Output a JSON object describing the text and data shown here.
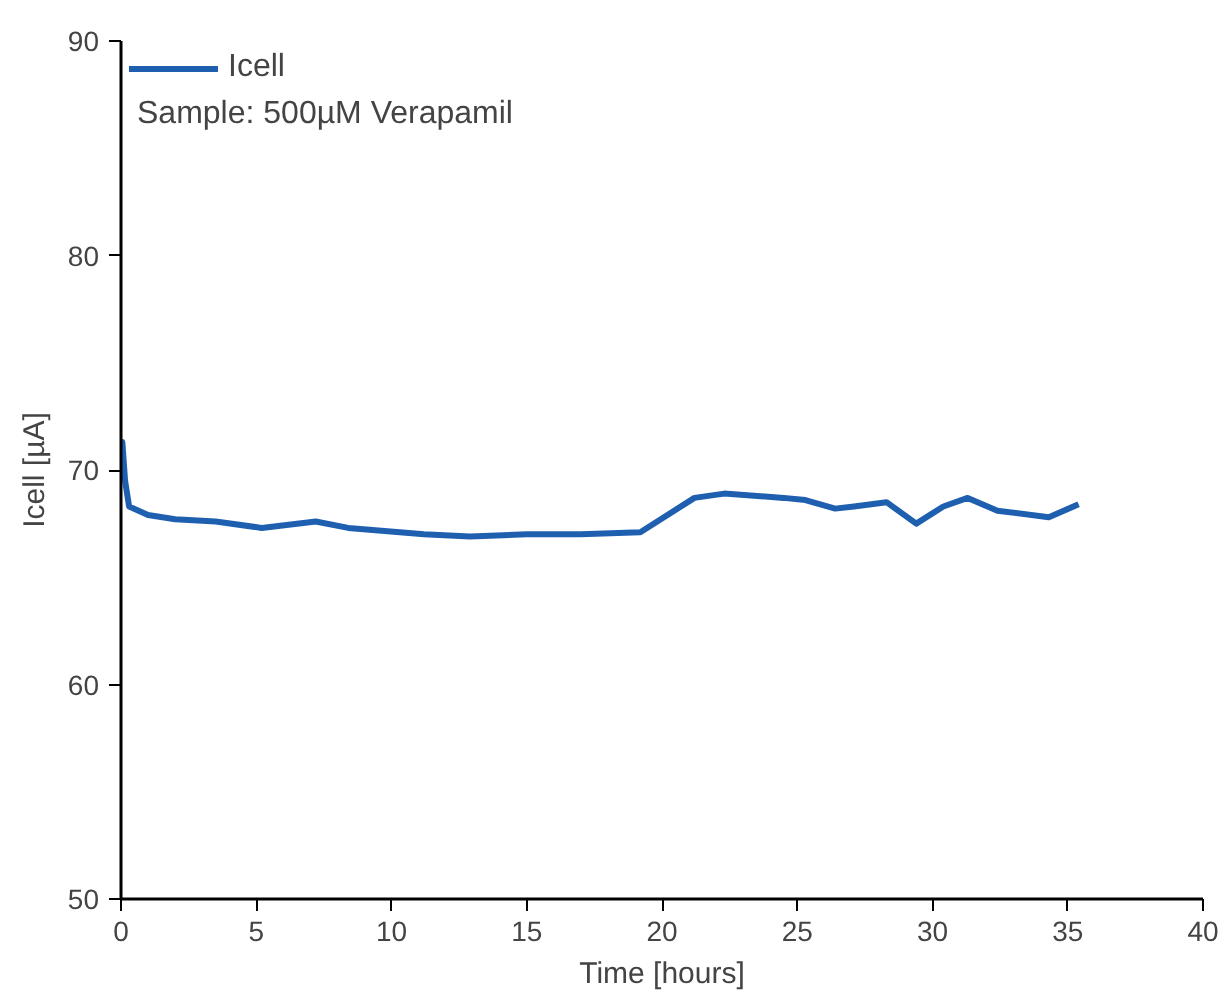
{
  "chart_data": {
    "type": "line",
    "xlabel": "Time [hours]",
    "ylabel": "Icell [µA]",
    "xlim": [
      0,
      40
    ],
    "ylim": [
      50,
      90
    ],
    "xticks": [
      0,
      5,
      10,
      15,
      20,
      25,
      30,
      35,
      40
    ],
    "yticks": [
      50,
      60,
      70,
      80,
      90
    ],
    "grid": false,
    "legend": "top left",
    "annotations": [
      "Sample: 500µM Verapamil"
    ],
    "series": [
      {
        "name": "Icell",
        "color": "#1f5fb0",
        "x": [
          0,
          0.05,
          0.15,
          0.3,
          1,
          2,
          3.5,
          5.2,
          7.2,
          8.4,
          11.2,
          12.9,
          15,
          17,
          19.2,
          21.2,
          22.3,
          24.5,
          25.3,
          26.4,
          27.1,
          28.3,
          29.4,
          30.4,
          31.3,
          32.4,
          34.3,
          35.4
        ],
        "values": [
          70.5,
          71.3,
          69.5,
          68.3,
          67.9,
          67.7,
          67.6,
          67.3,
          67.6,
          67.3,
          67.0,
          66.9,
          67.0,
          67.0,
          67.1,
          68.7,
          68.9,
          68.7,
          68.6,
          68.2,
          68.3,
          68.5,
          67.5,
          68.3,
          68.7,
          68.1,
          67.8,
          68.4
        ]
      }
    ]
  }
}
